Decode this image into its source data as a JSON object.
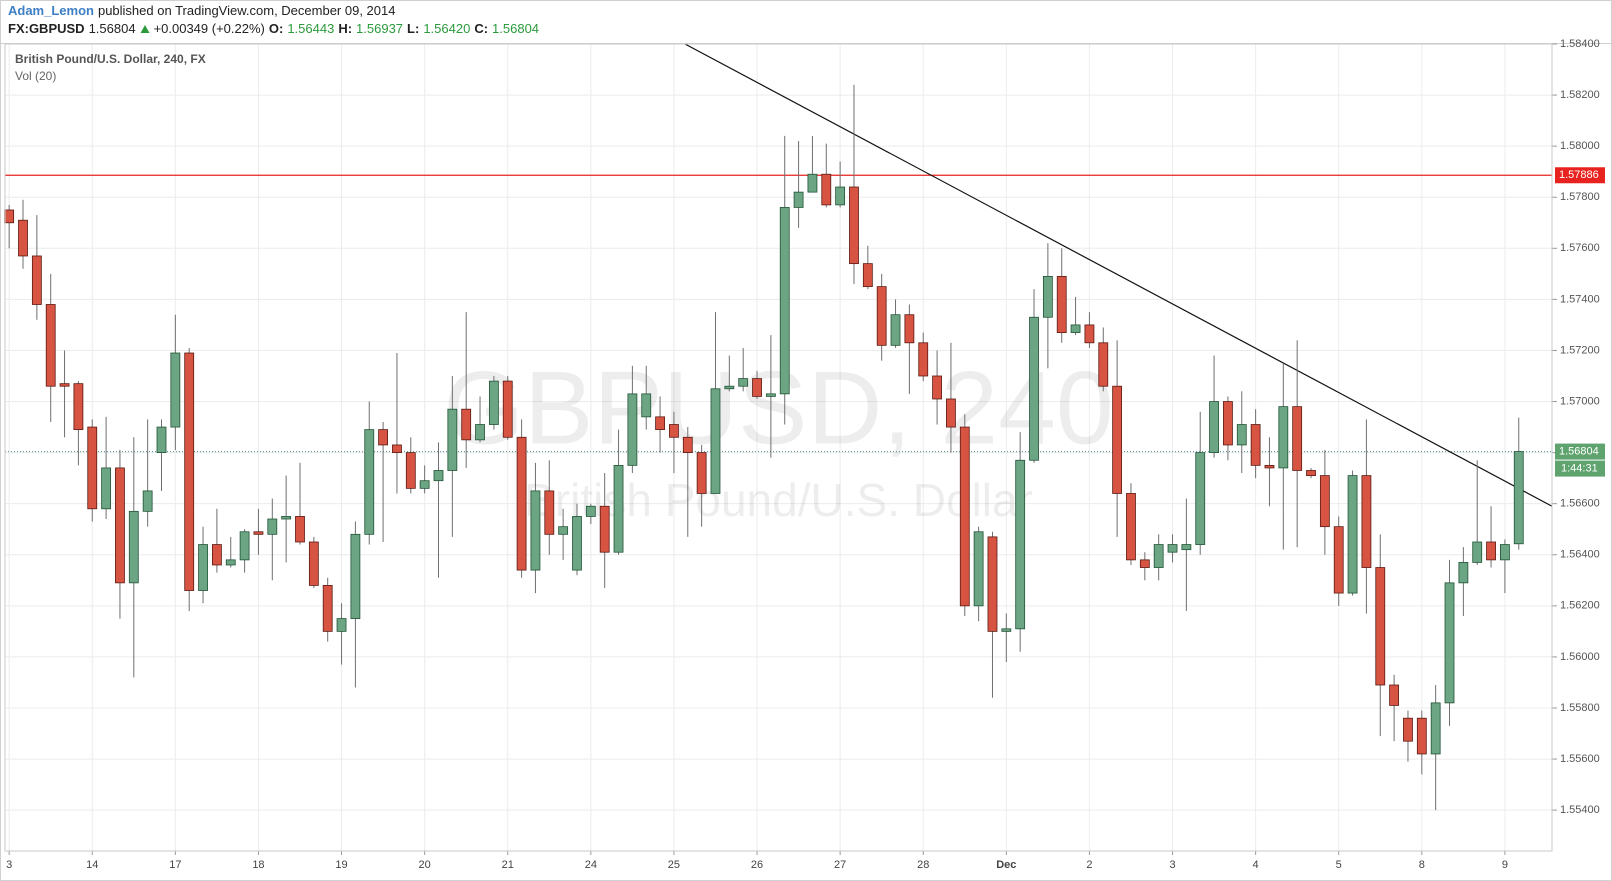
{
  "chart_data": {
    "type": "candlestick",
    "header": {
      "user": "Adam_Lemon",
      "published": "published on TradingView.com, December 09, 2014",
      "symbol": "FX:GBPUSD",
      "price": "1.56804",
      "change": "+0.00349 (+0.22%)",
      "open_label": "O:",
      "open": "1.56443",
      "high_label": "H:",
      "high": "1.56937",
      "low_label": "L:",
      "low": "1.56420",
      "close_label": "C:",
      "close": "1.56804"
    },
    "legend": [
      "British Pound/U.S. Dollar, 240, FX",
      "Vol (20)"
    ],
    "watermark": [
      "GBPUSD, 240",
      "British Pound/U.S. Dollar"
    ],
    "up_color": "#6ba583",
    "up_border": "#225437",
    "down_color": "#d75442",
    "down_border": "#5b1a13",
    "xlim": [
      -0.3,
      111.4
    ],
    "ylim": [
      1.5524,
      1.584
    ],
    "grid": true,
    "xticks": [
      {
        "value": 0,
        "label": "3"
      },
      {
        "value": 6,
        "label": "14"
      },
      {
        "value": 12,
        "label": "17"
      },
      {
        "value": 18,
        "label": "18"
      },
      {
        "value": 24,
        "label": "19"
      },
      {
        "value": 30,
        "label": "20"
      },
      {
        "value": 36,
        "label": "21"
      },
      {
        "value": 42,
        "label": "24"
      },
      {
        "value": 48,
        "label": "25"
      },
      {
        "value": 54,
        "label": "26"
      },
      {
        "value": 60,
        "label": "27"
      },
      {
        "value": 66,
        "label": "28"
      },
      {
        "value": 72,
        "label": "Dec"
      },
      {
        "value": 78,
        "label": "2"
      },
      {
        "value": 84,
        "label": "3"
      },
      {
        "value": 90,
        "label": "4"
      },
      {
        "value": 96,
        "label": "5"
      },
      {
        "value": 102,
        "label": "8"
      },
      {
        "value": 108,
        "label": "9"
      }
    ],
    "yticks": [
      {
        "value": 1.554,
        "label": "1.55400"
      },
      {
        "value": 1.556,
        "label": "1.55600"
      },
      {
        "value": 1.558,
        "label": "1.55800"
      },
      {
        "value": 1.56,
        "label": "1.56000"
      },
      {
        "value": 1.562,
        "label": "1.56200"
      },
      {
        "value": 1.564,
        "label": "1.56400"
      },
      {
        "value": 1.566,
        "label": "1.56600"
      },
      {
        "value": 1.568,
        "label": "1.56800"
      },
      {
        "value": 1.57,
        "label": "1.57000"
      },
      {
        "value": 1.572,
        "label": "1.57200"
      },
      {
        "value": 1.574,
        "label": "1.57400"
      },
      {
        "value": 1.576,
        "label": "1.57600"
      },
      {
        "value": 1.578,
        "label": "1.57800"
      },
      {
        "value": 1.58,
        "label": "1.58000"
      },
      {
        "value": 1.582,
        "label": "1.58200"
      },
      {
        "value": 1.584,
        "label": "1.58400"
      }
    ],
    "hline": {
      "value": 1.57886,
      "label": "1.57886",
      "color": "#e8231f"
    },
    "last_price": {
      "value": 1.56804,
      "label": "1.56804",
      "countdown": "1:44:31",
      "color": "#5fa36f"
    },
    "trendline": {
      "x": [
        48.8,
        111.4
      ],
      "y": [
        1.584,
        1.5659
      ],
      "color": "#111111"
    },
    "ohlc": {
      "open": [
        1.5775,
        1.5771,
        1.5757,
        1.5738,
        1.5707,
        1.5707,
        1.569,
        1.5658,
        1.5674,
        1.5629,
        1.5657,
        1.568,
        1.569,
        1.5719,
        1.5626,
        1.5644,
        1.5636,
        1.5638,
        1.5649,
        1.5648,
        1.5654,
        1.5655,
        1.5645,
        1.5628,
        1.561,
        1.5615,
        1.5648,
        1.5689,
        1.5683,
        1.568,
        1.5666,
        1.5669,
        1.5673,
        1.5697,
        1.5685,
        1.5691,
        1.5708,
        1.5686,
        1.5634,
        1.5665,
        1.5648,
        1.5634,
        1.5655,
        1.5659,
        1.5641,
        1.5675,
        1.5694,
        1.5694,
        1.5691,
        1.5686,
        1.568,
        1.5664,
        1.5705,
        1.5706,
        1.5709,
        1.5702,
        1.5703,
        1.5776,
        1.5782,
        1.5789,
        1.5777,
        1.5784,
        1.5754,
        1.5745,
        1.5722,
        1.5734,
        1.5723,
        1.571,
        1.5701,
        1.569,
        1.562,
        1.5647,
        1.561,
        1.5611,
        1.5677,
        1.5733,
        1.5749,
        1.5727,
        1.573,
        1.5723,
        1.5706,
        1.5664,
        1.5638,
        1.5635,
        1.5641,
        1.5642,
        1.5644,
        1.568,
        1.57,
        1.5683,
        1.5691,
        1.5675,
        1.5674,
        1.5698,
        1.5673,
        1.5671,
        1.5651,
        1.5625,
        1.5671,
        1.5635,
        1.5589,
        1.5576,
        1.5576,
        1.5562,
        1.5582,
        1.5629,
        1.5637,
        1.5645,
        1.5638,
        1.56443
      ],
      "high": [
        1.5777,
        1.5779,
        1.5773,
        1.575,
        1.572,
        1.5708,
        1.5693,
        1.5694,
        1.5681,
        1.5686,
        1.5693,
        1.5693,
        1.5734,
        1.5721,
        1.5651,
        1.5658,
        1.5647,
        1.565,
        1.5658,
        1.5662,
        1.5671,
        1.5676,
        1.5647,
        1.5631,
        1.5621,
        1.5653,
        1.57,
        1.5692,
        1.5719,
        1.5686,
        1.5675,
        1.5684,
        1.571,
        1.5735,
        1.5702,
        1.571,
        1.571,
        1.5693,
        1.5676,
        1.5677,
        1.5658,
        1.566,
        1.566,
        1.5672,
        1.5689,
        1.5714,
        1.5714,
        1.5702,
        1.5696,
        1.569,
        1.5683,
        1.5735,
        1.5718,
        1.5721,
        1.5712,
        1.5726,
        1.5804,
        1.5802,
        1.5804,
        1.5801,
        1.5794,
        1.5824,
        1.5761,
        1.575,
        1.574,
        1.5738,
        1.5727,
        1.572,
        1.5723,
        1.5695,
        1.5651,
        1.5649,
        1.5617,
        1.5688,
        1.5744,
        1.5762,
        1.576,
        1.5741,
        1.5735,
        1.5729,
        1.5724,
        1.5668,
        1.5641,
        1.5648,
        1.5648,
        1.5662,
        1.5696,
        1.5718,
        1.5702,
        1.5704,
        1.5697,
        1.5686,
        1.5715,
        1.5724,
        1.5674,
        1.5681,
        1.5655,
        1.5673,
        1.5693,
        1.5648,
        1.5593,
        1.5579,
        1.5579,
        1.5589,
        1.5638,
        1.5643,
        1.5677,
        1.5659,
        1.5646,
        1.56937
      ],
      "low": [
        1.576,
        1.5752,
        1.5732,
        1.5692,
        1.5686,
        1.5675,
        1.5653,
        1.5654,
        1.5615,
        1.5592,
        1.5651,
        1.5665,
        1.5681,
        1.5618,
        1.5621,
        1.5633,
        1.5635,
        1.5633,
        1.564,
        1.563,
        1.5637,
        1.5644,
        1.5627,
        1.5606,
        1.5597,
        1.5588,
        1.5644,
        1.5645,
        1.5664,
        1.5664,
        1.5664,
        1.5631,
        1.5647,
        1.5674,
        1.5684,
        1.5689,
        1.5685,
        1.5631,
        1.5625,
        1.564,
        1.5638,
        1.5632,
        1.5652,
        1.5627,
        1.564,
        1.5672,
        1.5689,
        1.568,
        1.5672,
        1.5647,
        1.5651,
        1.5664,
        1.5704,
        1.5704,
        1.5701,
        1.5678,
        1.5691,
        1.5768,
        1.5782,
        1.5776,
        1.5776,
        1.5746,
        1.5744,
        1.5716,
        1.5721,
        1.5703,
        1.5708,
        1.5691,
        1.568,
        1.5616,
        1.5614,
        1.5584,
        1.5598,
        1.5602,
        1.5676,
        1.5713,
        1.5723,
        1.5726,
        1.5721,
        1.5704,
        1.5647,
        1.5636,
        1.563,
        1.563,
        1.5637,
        1.5618,
        1.564,
        1.5678,
        1.5677,
        1.5672,
        1.567,
        1.5659,
        1.5642,
        1.5643,
        1.567,
        1.564,
        1.562,
        1.5624,
        1.5617,
        1.5569,
        1.5567,
        1.5559,
        1.5554,
        1.554,
        1.5573,
        1.5616,
        1.5636,
        1.5635,
        1.5625,
        1.5642
      ],
      "close": [
        1.577,
        1.5757,
        1.5738,
        1.5706,
        1.5706,
        1.5689,
        1.5658,
        1.5674,
        1.5629,
        1.5657,
        1.5665,
        1.569,
        1.5719,
        1.5626,
        1.5644,
        1.5636,
        1.5638,
        1.5649,
        1.5648,
        1.5654,
        1.5655,
        1.5645,
        1.5628,
        1.561,
        1.5615,
        1.5648,
        1.5689,
        1.5683,
        1.568,
        1.5666,
        1.5669,
        1.5673,
        1.5697,
        1.5685,
        1.5691,
        1.5708,
        1.5686,
        1.5634,
        1.5665,
        1.5648,
        1.5651,
        1.5655,
        1.5659,
        1.5641,
        1.5675,
        1.5703,
        1.5703,
        1.5689,
        1.5686,
        1.568,
        1.5664,
        1.5705,
        1.5706,
        1.5709,
        1.5702,
        1.5703,
        1.5776,
        1.5782,
        1.5789,
        1.5777,
        1.5784,
        1.5754,
        1.5745,
        1.5722,
        1.5734,
        1.5723,
        1.571,
        1.5701,
        1.569,
        1.562,
        1.5649,
        1.561,
        1.5611,
        1.5677,
        1.5733,
        1.5749,
        1.5727,
        1.573,
        1.5723,
        1.5706,
        1.5664,
        1.5638,
        1.5635,
        1.5644,
        1.5644,
        1.5644,
        1.568,
        1.57,
        1.5683,
        1.5691,
        1.5675,
        1.5674,
        1.5698,
        1.5673,
        1.5671,
        1.5651,
        1.5625,
        1.5671,
        1.5635,
        1.5589,
        1.5581,
        1.5567,
        1.5562,
        1.5582,
        1.5629,
        1.5637,
        1.5645,
        1.5638,
        1.5644,
        1.56804
      ]
    }
  }
}
